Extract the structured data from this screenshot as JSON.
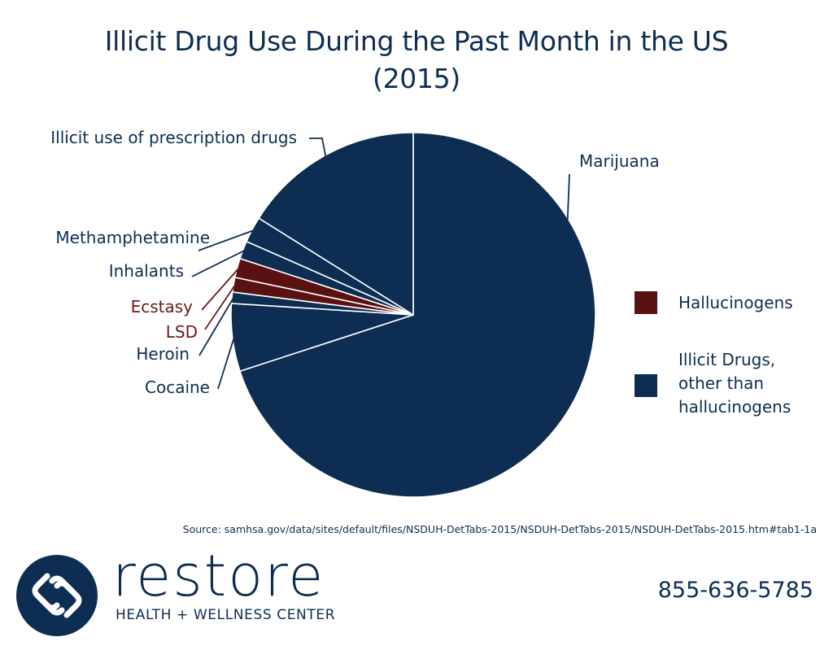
{
  "chart_data": {
    "type": "pie",
    "title_lines": [
      "Illicit Drug Use During the Past Month in the US",
      "(2015)"
    ],
    "slices": [
      {
        "label": "Marijuana",
        "value": 70.0,
        "category": "other"
      },
      {
        "label": "Cocaine",
        "value": 6.0,
        "category": "other"
      },
      {
        "label": "Heroin",
        "value": 1.0,
        "category": "other"
      },
      {
        "label": "LSD",
        "value": 1.3,
        "category": "hallucinogen"
      },
      {
        "label": "Ecstasy",
        "value": 1.7,
        "category": "hallucinogen"
      },
      {
        "label": "Inhalants",
        "value": 1.6,
        "category": "other"
      },
      {
        "label": "Methamphetamine",
        "value": 2.3,
        "category": "other"
      },
      {
        "label": "Illicit use of prescription drugs",
        "value": 16.1,
        "category": "other"
      }
    ],
    "legend": [
      {
        "label": "Hallucinogens",
        "color": "#5a1111"
      },
      {
        "label": "Illicit Drugs, other than hallucinogens",
        "color": "#0d2e52"
      }
    ],
    "legend_position": "right"
  },
  "colors": {
    "navy": "#0d2e52",
    "maroon": "#5a1111",
    "hallucinogen_label": "#6b1a1a"
  },
  "source_text": "Source: samhsa.gov/data/sites/default/files/NSDUH-DetTabs-2015/NSDUH-DetTabs-2015/NSDUH-DetTabs-2015.htm#tab1-1a",
  "brand": {
    "name": "restore",
    "subtitle": "HEALTH + WELLNESS CENTER",
    "phone": "855-636-5785",
    "logo_icon": "linked-loops-logo-icon"
  }
}
